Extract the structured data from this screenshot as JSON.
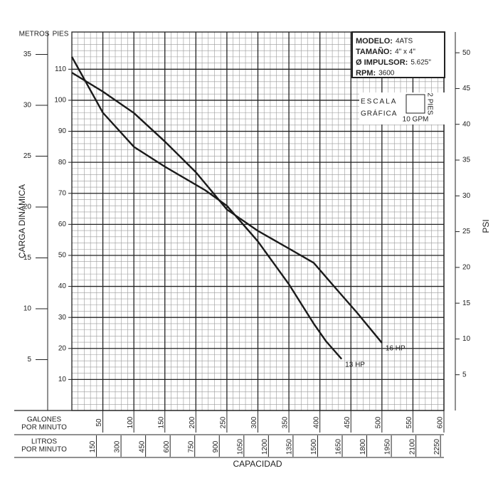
{
  "chart_data": {
    "type": "line",
    "y_axis_label": "CARGA DINÁMICA",
    "y_units_label": "PIES",
    "metros_label": "METROS",
    "y2_axis_label": "PSI",
    "x_axis_label": "CAPACIDAD",
    "gpm_label": [
      "GALONES",
      "POR MINUTO"
    ],
    "lpm_label": [
      "LITROS",
      "POR MINUTO"
    ],
    "xlim": [
      0,
      600
    ],
    "xticks": [
      50,
      100,
      150,
      200,
      250,
      300,
      350,
      400,
      450,
      500,
      550,
      600
    ],
    "lpm_lim": [
      0,
      2271
    ],
    "lpm_ticks": [
      150,
      300,
      450,
      600,
      750,
      900,
      1050,
      1200,
      1350,
      1500,
      1650,
      1800,
      1950,
      2100,
      2250
    ],
    "ylim": [
      0,
      122
    ],
    "yticks": [
      10,
      20,
      30,
      40,
      50,
      60,
      70,
      80,
      90,
      100,
      110
    ],
    "metros_lim": [
      0,
      37.2
    ],
    "metros_ticks": [
      5,
      10,
      15,
      20,
      25,
      30,
      35
    ],
    "y2lim": [
      0,
      52.9
    ],
    "y2ticks": [
      5,
      10,
      15,
      20,
      25,
      30,
      35,
      40,
      45,
      50
    ],
    "grid": true,
    "info": [
      {
        "key": "MODELO:",
        "value": "4ATS"
      },
      {
        "key": "TAMAÑO:",
        "value": "4\" x 4\""
      },
      {
        "key": "Ø IMPULSOR:",
        "value": "5.625\""
      },
      {
        "key": "RPM:",
        "value": "3600"
      }
    ],
    "scale_legend": {
      "title": [
        "ESCALA",
        "GRÁFICA"
      ],
      "y": {
        "value": 2,
        "label": "2 PIES"
      },
      "x": {
        "value": 10,
        "label": "10 GPM"
      }
    },
    "series": [
      {
        "name": "13 HP",
        "color": "#1a1a1a",
        "x": [
          0,
          50,
          100,
          150,
          215,
          250,
          300,
          350,
          390,
          410,
          435
        ],
        "values": [
          114,
          96,
          85,
          78.6,
          71,
          66,
          54.5,
          40.7,
          28,
          22.3,
          16.6
        ]
      },
      {
        "name": "16 HP",
        "color": "#1a1a1a",
        "x": [
          0,
          50,
          100,
          150,
          200,
          250,
          300,
          350,
          390,
          425,
          460,
          500
        ],
        "values": [
          108.9,
          102.8,
          95.9,
          86.7,
          76.8,
          64.8,
          57.9,
          52.2,
          47.6,
          39.5,
          31.5,
          21.8
        ]
      }
    ]
  }
}
